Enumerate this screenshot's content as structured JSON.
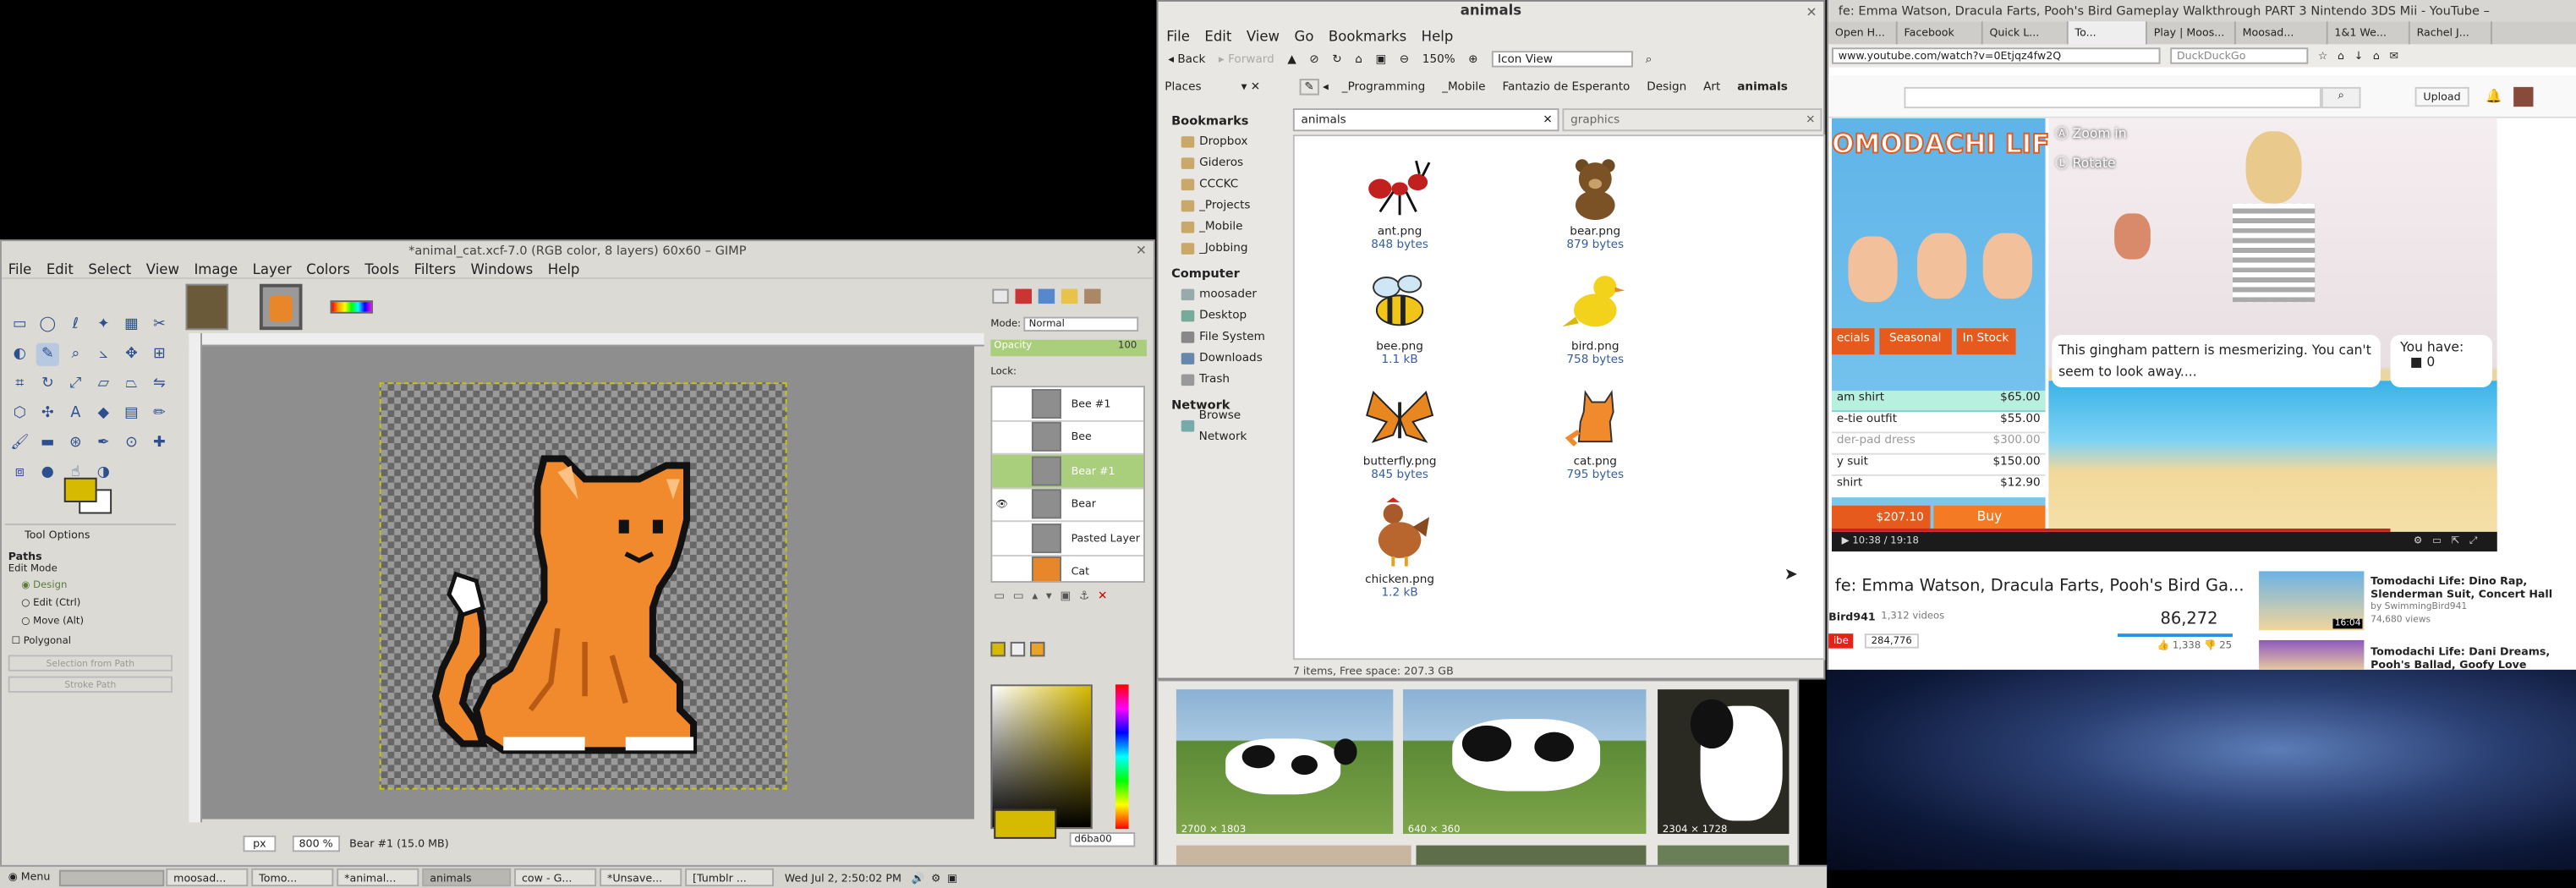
{
  "gimp": {
    "title": "*animal_cat.xcf-7.0 (RGB color, 8 layers) 60x60 – GIMP",
    "menu": [
      "File",
      "Edit",
      "Select",
      "View",
      "Image",
      "Layer",
      "Colors",
      "Tools",
      "Filters",
      "Windows",
      "Help"
    ],
    "tool_options": {
      "title": "Tool Options",
      "paths_heading": "Paths",
      "edit_mode": "Edit Mode",
      "modes": [
        "Design",
        "Edit (Ctrl)",
        "Move (Alt)"
      ],
      "polygonal": "Polygonal",
      "selection_from_path": "Selection from Path",
      "stroke_path": "Stroke Path"
    },
    "status": {
      "unit": "px",
      "zoom": "800 %",
      "layer_info": "Bear #1 (15.0 MB)"
    },
    "layers": {
      "mode_label": "Mode:",
      "mode_value": "Normal",
      "opacity_label": "Opacity",
      "opacity_value": "100",
      "lock_label": "Lock:",
      "items": [
        "Bee #1",
        "Bee",
        "Bear #1",
        "Bear",
        "Pasted Layer",
        "Cat"
      ],
      "selected": "Bear #1"
    },
    "hex_value": "d6ba00",
    "fg_color": "#d6ba00"
  },
  "fm": {
    "title": "animals",
    "menu": [
      "File",
      "Edit",
      "View",
      "Go",
      "Bookmarks",
      "Help"
    ],
    "back": "Back",
    "forward": "Forward",
    "zoom": "150%",
    "view": "Icon View",
    "places_label": "Places",
    "path": [
      "_Programming",
      "_Mobile",
      "Fantazio de Esperanto",
      "Design",
      "Art",
      "animals"
    ],
    "tab1": "animals",
    "tab2": "graphics",
    "bookmarks_heading": "Bookmarks",
    "bookmarks": [
      "Dropbox",
      "Gideros",
      "CCCKC",
      "_Projects",
      "_Mobile",
      "_Jobbing"
    ],
    "computer_heading": "Computer",
    "computer": [
      "moosader",
      "Desktop",
      "File System",
      "Downloads",
      "Trash"
    ],
    "network_heading": "Network",
    "network": [
      "Browse Network"
    ],
    "files": [
      {
        "name": "ant.png",
        "size": "848 bytes",
        "icon": "ant-icon"
      },
      {
        "name": "bear.png",
        "size": "879 bytes",
        "icon": "bear-icon"
      },
      {
        "name": "bee.png",
        "size": "1.1 kB",
        "icon": "bee-icon"
      },
      {
        "name": "bird.png",
        "size": "758 bytes",
        "icon": "bird-icon"
      },
      {
        "name": "butterfly.png",
        "size": "845 bytes",
        "icon": "butterfly-icon"
      },
      {
        "name": "cat.png",
        "size": "795 bytes",
        "icon": "cat-icon"
      },
      {
        "name": "chicken.png",
        "size": "1.2 kB",
        "icon": "chicken-icon"
      }
    ],
    "status": "7 items, Free space: 207.3 GB"
  },
  "images": [
    {
      "label": "2700 × 1803"
    },
    {
      "label": "640 × 360"
    },
    {
      "label": "2304 × 1728"
    }
  ],
  "browser": {
    "title": "fe: Emma Watson, Dracula Farts, Pooh's Bird Gameplay Walkthrough PART 3 Nintendo 3DS Mii - YouTube –",
    "tabs": [
      "Open H...",
      "Facebook",
      "Quick L...",
      "To...",
      "Play | Moos...",
      "Moosad...",
      "1&1 We...",
      "Rachel J..."
    ],
    "url": "www.youtube.com/watch?v=0Etjqz4fw2Q",
    "search_engine": "DuckDuckGo",
    "upload": "Upload",
    "game": {
      "zoom": "Zoom in",
      "rotate": "Rotate",
      "tabs": [
        "ecials",
        "Seasonal",
        "In Stock"
      ],
      "message": "This gingham pattern is mesmerizing. You can't seem to look away....",
      "you_have": "You have:",
      "count": "0",
      "items": [
        {
          "n": "am shirt",
          "p": "$65.00"
        },
        {
          "n": "e-tie outfit",
          "p": "$55.00"
        },
        {
          "n": "der-pad dress",
          "p": "$300.00"
        },
        {
          "n": "y suit",
          "p": "$150.00"
        },
        {
          "n": "shirt",
          "p": "$12.90"
        }
      ],
      "total": "$207.10",
      "buy": "Buy",
      "logo": "OMODACHI LIFE"
    },
    "time": "10:38 / 19:18",
    "video_title": "fe: Emma Watson, Dracula Farts, Pooh's Bird Ga...",
    "channel": "Bird941",
    "videos": "1,312 videos",
    "subscribe": "ibe",
    "subs": "284,776",
    "views": "86,272",
    "likes": "1,338",
    "dislikes": "25",
    "related": [
      {
        "title": "Tomodachi Life: Dino Rap, Slenderman Suit, Concert Hall",
        "by": "by SwimmingBird941",
        "views": "74,680 views",
        "duration": "16:04"
      },
      {
        "title": "Tomodachi Life: Dani Dreams, Pooh's Ballad, Goofy Love",
        "by": "",
        "views": "",
        "duration": ""
      }
    ]
  },
  "taskbar": {
    "menu": "Menu",
    "items": [
      "moosad...",
      "Tomo...",
      "*animal...",
      "animals",
      "cow - G...",
      "*Unsave...",
      "[Tumblr ..."
    ],
    "active": "animals",
    "clock": "Wed Jul  2,  2:50:02 PM"
  }
}
